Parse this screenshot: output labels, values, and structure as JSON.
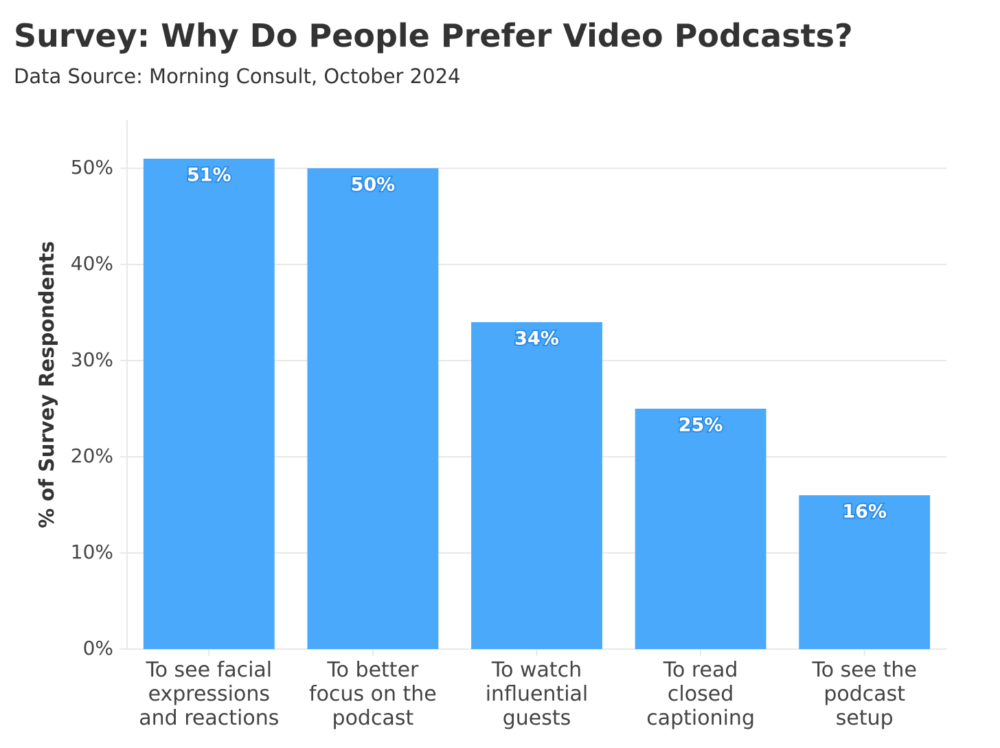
{
  "chart_data": {
    "type": "bar",
    "title": "Survey: Why Do People Prefer Video Podcasts?",
    "subtitle": "Data Source: Morning Consult, October 2024",
    "y_label": "% of Survey Respondents",
    "categories": [
      "To see facial\nexpressions\nand reactions",
      "To better\nfocus on the\npodcast",
      "To watch\ninfluential\nguests",
      "To read\nclosed\ncaptioning",
      "To see the\npodcast\nsetup"
    ],
    "values": [
      51,
      50,
      34,
      25,
      16
    ],
    "value_labels": [
      "51%",
      "50%",
      "34%",
      "25%",
      "16%"
    ],
    "color": "#4ba9fc",
    "ylim": [
      0,
      55
    ],
    "yticks": [
      {
        "value": 0,
        "label": "0%"
      },
      {
        "value": 10,
        "label": "10%"
      },
      {
        "value": 20,
        "label": "20%"
      },
      {
        "value": 30,
        "label": "30%"
      },
      {
        "value": 40,
        "label": "40%"
      },
      {
        "value": 50,
        "label": "50%"
      }
    ],
    "grid": true
  }
}
